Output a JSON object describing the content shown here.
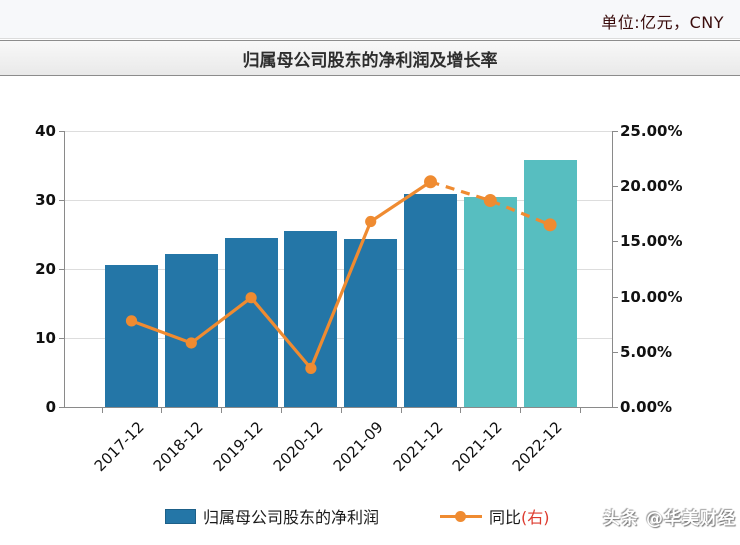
{
  "meta": {
    "unit_label": "单位:亿元，CNY"
  },
  "header": {
    "title": "归属母公司股东的净利润及增长率"
  },
  "chart_data": {
    "type": "combo-bar-line",
    "categories": [
      "2017-12",
      "2018-12",
      "2019-12",
      "2020-12",
      "2021-09",
      "2021-12",
      "2021-12",
      "2022-12"
    ],
    "series": [
      {
        "name": "归属母公司股东的净利润",
        "type": "bar",
        "yaxis": "left",
        "values": [
          20.6,
          22.2,
          24.5,
          25.5,
          24.3,
          30.8,
          30.5,
          35.8
        ],
        "bar_colors": [
          "#2476a7",
          "#2476a7",
          "#2476a7",
          "#2476a7",
          "#2476a7",
          "#2476a7",
          "#57bec0",
          "#57bec0"
        ]
      },
      {
        "name": "同比(右)",
        "type": "line",
        "yaxis": "right",
        "values": [
          7.8,
          5.8,
          9.9,
          3.5,
          16.8,
          20.4,
          18.7,
          16.5
        ],
        "dash_from_index": 5,
        "color": "#ef8b31"
      }
    ],
    "left_axis": {
      "min": 0,
      "max": 40,
      "ticks": [
        0,
        10,
        20,
        30,
        40
      ]
    },
    "right_axis": {
      "min": 0,
      "max": 25,
      "tick_values": [
        0,
        5,
        10,
        15,
        20,
        25
      ],
      "tick_labels": [
        "0.00%",
        "5.00%",
        "10.00%",
        "15.00%",
        "20.00%",
        "25.00%"
      ]
    },
    "grid": true,
    "legend_position": "bottom"
  },
  "legend": {
    "bar_label": "归属母公司股东的净利润",
    "line_label": "同比",
    "line_label_suffix": "(右)"
  },
  "watermark": "头条 @华美财经",
  "colors": {
    "bar": "#2476a7",
    "bar_forecast": "#57bec0",
    "line": "#ef8b31",
    "unit_text": "#3a0c0c",
    "legend_suffix_red": "#dd3b2f",
    "gridline": "#dddddd"
  }
}
